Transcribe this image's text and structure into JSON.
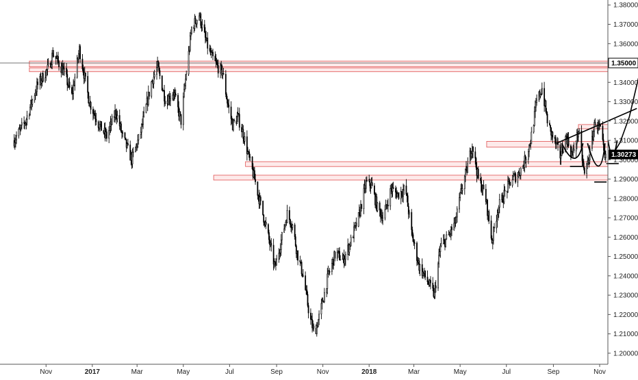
{
  "chart_data": {
    "type": "candlestick",
    "title": "",
    "xlabel": "",
    "ylabel": "",
    "ylim": [
      1.195,
      1.3815
    ],
    "y_ticks": [
      1.2,
      1.21,
      1.22,
      1.23,
      1.24,
      1.25,
      1.26,
      1.27,
      1.28,
      1.29,
      1.3,
      1.31,
      1.32,
      1.33,
      1.34,
      1.35,
      1.36,
      1.37,
      1.38
    ],
    "y_tick_labels": [
      "1.20000",
      "1.21000",
      "1.22000",
      "1.23000",
      "1.24000",
      "1.25000",
      "1.26000",
      "1.27000",
      "1.28000",
      "1.29000",
      "1.30000",
      "1.31000",
      "1.32000",
      "1.33000",
      "1.34000",
      "1.35000",
      "1.36000",
      "1.37000",
      "1.38000"
    ],
    "x_ticks": [
      {
        "label": "Nov",
        "date": "2016-11",
        "bold": false
      },
      {
        "label": "2017",
        "date": "2017-01",
        "bold": true
      },
      {
        "label": "Mar",
        "date": "2017-03",
        "bold": false
      },
      {
        "label": "May",
        "date": "2017-05",
        "bold": false
      },
      {
        "label": "Jul",
        "date": "2017-07",
        "bold": false
      },
      {
        "label": "Sep",
        "date": "2017-09",
        "bold": false
      },
      {
        "label": "Nov",
        "date": "2017-11",
        "bold": false
      },
      {
        "label": "2018",
        "date": "2018-01",
        "bold": true
      },
      {
        "label": "Mar",
        "date": "2018-03",
        "bold": false
      },
      {
        "label": "May",
        "date": "2018-05",
        "bold": false
      },
      {
        "label": "Jul",
        "date": "2018-07",
        "bold": false
      },
      {
        "label": "Sep",
        "date": "2018-09",
        "bold": false
      },
      {
        "label": "Nov",
        "date": "2018-11",
        "bold": false
      }
    ],
    "price_path": [
      [
        "2016-09-20",
        1.31
      ],
      [
        "2016-10-05",
        1.32
      ],
      [
        "2016-10-20",
        1.338
      ],
      [
        "2016-11-05",
        1.348
      ],
      [
        "2016-11-10",
        1.355
      ],
      [
        "2016-11-25",
        1.345
      ],
      [
        "2016-12-05",
        1.333
      ],
      [
        "2016-12-15",
        1.357
      ],
      [
        "2016-12-28",
        1.33
      ],
      [
        "2017-01-10",
        1.318
      ],
      [
        "2017-01-20",
        1.312
      ],
      [
        "2017-02-01",
        1.325
      ],
      [
        "2017-02-10",
        1.312
      ],
      [
        "2017-02-22",
        1.3
      ],
      [
        "2017-03-05",
        1.313
      ],
      [
        "2017-03-20",
        1.34
      ],
      [
        "2017-03-28",
        1.348
      ],
      [
        "2017-04-08",
        1.33
      ],
      [
        "2017-04-18",
        1.335
      ],
      [
        "2017-04-28",
        1.32
      ],
      [
        "2017-05-05",
        1.345
      ],
      [
        "2017-05-12",
        1.368
      ],
      [
        "2017-05-22",
        1.375
      ],
      [
        "2017-05-28",
        1.365
      ],
      [
        "2017-06-05",
        1.355
      ],
      [
        "2017-06-15",
        1.348
      ],
      [
        "2017-06-22",
        1.345
      ],
      [
        "2017-06-28",
        1.33
      ],
      [
        "2017-07-05",
        1.318
      ],
      [
        "2017-07-12",
        1.322
      ],
      [
        "2017-07-20",
        1.312
      ],
      [
        "2017-07-27",
        1.3
      ],
      [
        "2017-08-03",
        1.29
      ],
      [
        "2017-08-12",
        1.275
      ],
      [
        "2017-08-20",
        1.262
      ],
      [
        "2017-08-30",
        1.244
      ],
      [
        "2017-09-08",
        1.26
      ],
      [
        "2017-09-15",
        1.272
      ],
      [
        "2017-09-22",
        1.266
      ],
      [
        "2017-09-28",
        1.252
      ],
      [
        "2017-10-06",
        1.24
      ],
      [
        "2017-10-15",
        1.218
      ],
      [
        "2017-10-21",
        1.21
      ],
      [
        "2017-10-28",
        1.22
      ],
      [
        "2017-11-08",
        1.24
      ],
      [
        "2017-11-18",
        1.252
      ],
      [
        "2017-11-28",
        1.248
      ],
      [
        "2017-12-08",
        1.258
      ],
      [
        "2017-12-18",
        1.27
      ],
      [
        "2017-12-28",
        1.288
      ],
      [
        "2018-01-04",
        1.287
      ],
      [
        "2018-01-12",
        1.275
      ],
      [
        "2018-01-20",
        1.27
      ],
      [
        "2018-01-30",
        1.285
      ],
      [
        "2018-02-08",
        1.282
      ],
      [
        "2018-02-18",
        1.285
      ],
      [
        "2018-02-26",
        1.262
      ],
      [
        "2018-03-08",
        1.245
      ],
      [
        "2018-03-18",
        1.238
      ],
      [
        "2018-03-28",
        1.23
      ],
      [
        "2018-04-05",
        1.255
      ],
      [
        "2018-04-15",
        1.26
      ],
      [
        "2018-04-25",
        1.268
      ],
      [
        "2018-05-03",
        1.285
      ],
      [
        "2018-05-10",
        1.295
      ],
      [
        "2018-05-17",
        1.308
      ],
      [
        "2018-05-25",
        1.29
      ],
      [
        "2018-06-03",
        1.282
      ],
      [
        "2018-06-12",
        1.258
      ],
      [
        "2018-06-20",
        1.275
      ],
      [
        "2018-06-28",
        1.282
      ],
      [
        "2018-07-08",
        1.29
      ],
      [
        "2018-07-16",
        1.292
      ],
      [
        "2018-07-24",
        1.298
      ],
      [
        "2018-08-02",
        1.31
      ],
      [
        "2018-08-10",
        1.33
      ],
      [
        "2018-08-17",
        1.337
      ],
      [
        "2018-08-25",
        1.318
      ],
      [
        "2018-09-02",
        1.31
      ],
      [
        "2018-09-10",
        1.302
      ],
      [
        "2018-09-18",
        1.312
      ],
      [
        "2018-09-26",
        1.302
      ],
      [
        "2018-10-04",
        1.315
      ],
      [
        "2018-10-12",
        1.292
      ],
      [
        "2018-10-20",
        1.305
      ],
      [
        "2018-10-26",
        1.32
      ],
      [
        "2018-11-02",
        1.315
      ],
      [
        "2018-11-08",
        1.3
      ],
      [
        "2018-11-14",
        1.303
      ]
    ],
    "zones": [
      {
        "from": "2016-10-10",
        "to": "2018-12-31",
        "low": 1.348,
        "high": 1.351
      },
      {
        "from": "2016-10-10",
        "to": "2018-12-31",
        "low": 1.3455,
        "high": 1.3475
      },
      {
        "from": "2018-06-05",
        "to": "2018-12-20",
        "low": 1.3065,
        "high": 1.3095
      },
      {
        "from": "2018-10-04",
        "to": "2018-12-15",
        "low": 1.316,
        "high": 1.3182
      },
      {
        "from": "2017-07-22",
        "to": "2018-12-20",
        "low": 1.2965,
        "high": 1.299
      },
      {
        "from": "2017-06-10",
        "to": "2018-12-20",
        "low": 1.2895,
        "high": 1.292
      }
    ],
    "horizontal_line": {
      "value": 1.35,
      "label": "1.35000"
    },
    "current_price": {
      "value": 1.30273,
      "label": "1.30273"
    },
    "trendline": {
      "from": [
        "2018-09-05",
        1.3085
      ],
      "to": [
        "2018-12-20",
        1.3265
      ]
    },
    "projection_curve": [
      [
        "2018-11-14",
        1.3
      ],
      [
        "2018-11-28",
        1.309
      ],
      [
        "2018-12-10",
        1.322
      ],
      [
        "2018-12-22",
        1.342
      ],
      [
        "2018-12-28",
        1.348
      ]
    ],
    "pattern": {
      "left_shoulder": {
        "from": "2018-09-12",
        "bottom": "2018-10-01",
        "to": "2018-10-10",
        "low": 1.2965
      },
      "head": {
        "from": "2018-10-16",
        "bottom": "2018-11-02",
        "to": "2018-11-08",
        "low": 1.2885
      },
      "right_shoulder": {
        "from": "2018-11-12",
        "bottom": "2018-11-18",
        "to": "2018-11-24",
        "low": 1.298
      }
    }
  },
  "colors": {
    "zone_fill": "#fdeaea",
    "zone_stroke": "#e05050",
    "candle": "#000000",
    "current_badge_bg": "#000000",
    "current_badge_text": "#ffffff",
    "level_badge_bg": "#ffffff",
    "level_badge_text": "#000000",
    "axis_line": "#555555",
    "hline": "#444444"
  }
}
